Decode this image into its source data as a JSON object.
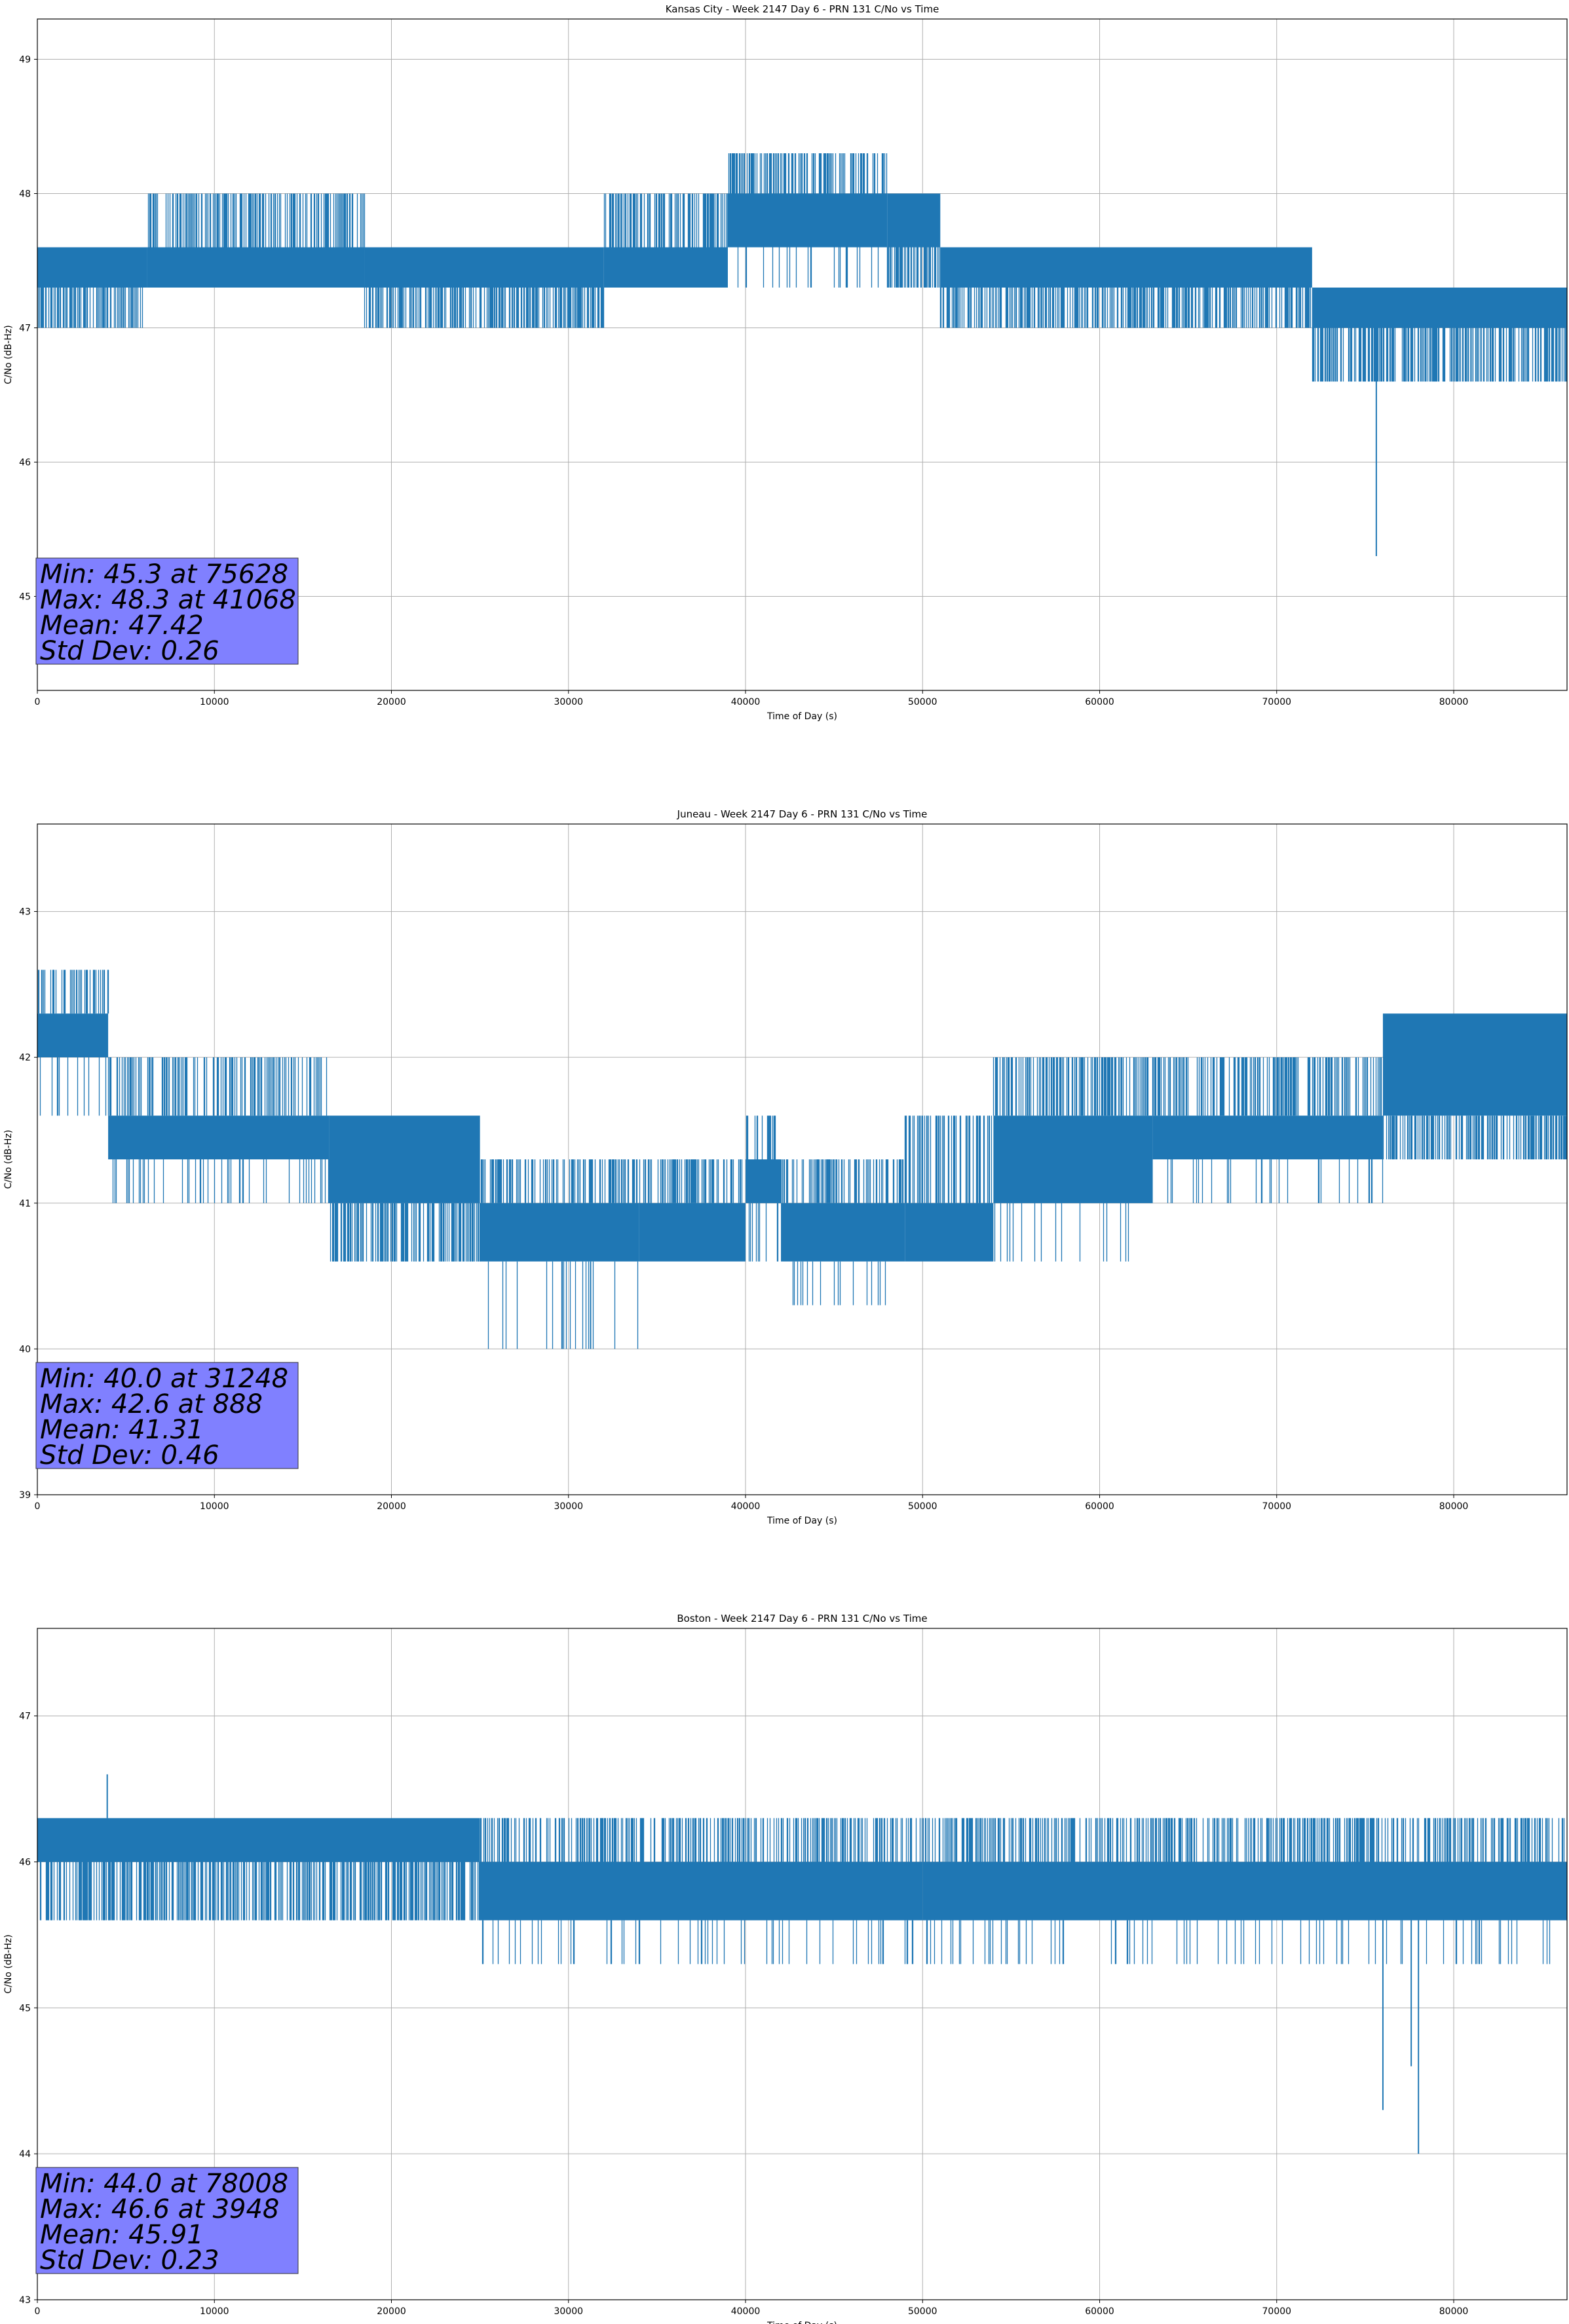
{
  "chart_data": [
    {
      "type": "line",
      "title": "Kansas City - Week 2147 Day 6 - PRN 131 C/No vs Time",
      "xlabel": "Time of Day (s)",
      "ylabel": "C/No (dB-Hz)",
      "xlim": [
        0,
        86400
      ],
      "ylim": [
        44.3,
        49.3
      ],
      "xticks": [
        0,
        10000,
        20000,
        30000,
        40000,
        50000,
        60000,
        70000,
        80000
      ],
      "yticks": [
        45,
        46,
        47,
        48,
        49
      ],
      "grid": true,
      "series": [
        {
          "name": "C/No",
          "color": "#1f77b4",
          "resolution": 0.3,
          "segments": [
            {
              "x0": 0,
              "x1": 6200,
              "base": [
                47.3,
                47.6
              ],
              "up": 47.6,
              "dn": 47.0
            },
            {
              "x0": 6200,
              "x1": 18500,
              "base": [
                47.3,
                47.6
              ],
              "up": 48.0,
              "dn": 47.3
            },
            {
              "x0": 18500,
              "x1": 32000,
              "base": [
                47.3,
                47.6
              ],
              "up": 47.6,
              "dn": 47.0
            },
            {
              "x0": 32000,
              "x1": 39000,
              "base": [
                47.3,
                47.6
              ],
              "up": 48.0,
              "dn": 47.3
            },
            {
              "x0": 39000,
              "x1": 48000,
              "base": [
                47.6,
                48.0
              ],
              "up": 48.3,
              "dn": 47.3
            },
            {
              "x0": 48000,
              "x1": 51000,
              "base": [
                47.6,
                48.0
              ],
              "up": 48.0,
              "dn": 47.3
            },
            {
              "x0": 51000,
              "x1": 72000,
              "base": [
                47.3,
                47.6
              ],
              "up": 47.6,
              "dn": 47.0
            },
            {
              "x0": 72000,
              "x1": 86400,
              "base": [
                47.0,
                47.3
              ],
              "up": 47.3,
              "dn": 46.6
            }
          ],
          "spikes": [
            {
              "x": 75628,
              "y": 45.3
            }
          ]
        }
      ],
      "stats": [
        "Min: 45.3 at 75628",
        "Max: 48.3 at 41068",
        "Mean: 47.42",
        "Std Dev: 0.26"
      ]
    },
    {
      "type": "line",
      "title": "Juneau - Week 2147 Day 6 - PRN 131 C/No vs Time",
      "xlabel": "Time of Day (s)",
      "ylabel": "C/No (dB-Hz)",
      "xlim": [
        0,
        86400
      ],
      "ylim": [
        39.0,
        43.6
      ],
      "xticks": [
        0,
        10000,
        20000,
        30000,
        40000,
        50000,
        60000,
        70000,
        80000
      ],
      "yticks": [
        39,
        40,
        41,
        42,
        43
      ],
      "grid": true,
      "series": [
        {
          "name": "C/No",
          "color": "#1f77b4",
          "resolution": 0.3,
          "segments": [
            {
              "x0": 0,
              "x1": 4000,
              "base": [
                42.0,
                42.3
              ],
              "up": 42.6,
              "dn": 41.6
            },
            {
              "x0": 4000,
              "x1": 16500,
              "base": [
                41.3,
                41.6
              ],
              "up": 42.0,
              "dn": 41.0
            },
            {
              "x0": 16500,
              "x1": 25000,
              "base": [
                41.0,
                41.6
              ],
              "up": 41.6,
              "dn": 40.6
            },
            {
              "x0": 25000,
              "x1": 34000,
              "base": [
                40.6,
                41.0
              ],
              "up": 41.3,
              "dn": 40.0
            },
            {
              "x0": 34000,
              "x1": 40000,
              "base": [
                40.6,
                41.0
              ],
              "up": 41.3,
              "dn": 40.6
            },
            {
              "x0": 40000,
              "x1": 42000,
              "base": [
                41.0,
                41.3
              ],
              "up": 41.6,
              "dn": 40.6
            },
            {
              "x0": 42000,
              "x1": 49000,
              "base": [
                40.6,
                41.0
              ],
              "up": 41.3,
              "dn": 40.3
            },
            {
              "x0": 49000,
              "x1": 54000,
              "base": [
                40.6,
                41.0
              ],
              "up": 41.6,
              "dn": 40.6
            },
            {
              "x0": 54000,
              "x1": 63000,
              "base": [
                41.0,
                41.6
              ],
              "up": 42.0,
              "dn": 40.6
            },
            {
              "x0": 63000,
              "x1": 76000,
              "base": [
                41.3,
                41.6
              ],
              "up": 42.0,
              "dn": 41.0
            },
            {
              "x0": 76000,
              "x1": 86400,
              "base": [
                41.6,
                42.3
              ],
              "up": 42.3,
              "dn": 41.3
            }
          ],
          "spikes": [
            {
              "x": 31248,
              "y": 40.0
            },
            {
              "x": 888,
              "y": 42.6
            }
          ]
        }
      ],
      "stats": [
        "Min: 40.0 at 31248",
        "Max: 42.6 at 888",
        "Mean: 41.31",
        "Std Dev: 0.46"
      ]
    },
    {
      "type": "line",
      "title": "Boston - Week 2147 Day 6 - PRN 131 C/No vs Time",
      "xlabel": "Time of Day (s)",
      "ylabel": "C/No (dB-Hz)",
      "xlim": [
        0,
        86400
      ],
      "ylim": [
        43.0,
        47.6
      ],
      "xticks": [
        0,
        10000,
        20000,
        30000,
        40000,
        50000,
        60000,
        70000,
        80000
      ],
      "yticks": [
        43,
        44,
        45,
        46,
        47
      ],
      "grid": true,
      "series": [
        {
          "name": "C/No",
          "color": "#1f77b4",
          "resolution": 0.3,
          "segments": [
            {
              "x0": 0,
              "x1": 25000,
              "base": [
                46.0,
                46.3
              ],
              "up": 46.3,
              "dn": 45.6
            },
            {
              "x0": 25000,
              "x1": 50000,
              "base": [
                45.6,
                46.0
              ],
              "up": 46.3,
              "dn": 45.3
            },
            {
              "x0": 50000,
              "x1": 86400,
              "base": [
                45.6,
                46.0
              ],
              "up": 46.3,
              "dn": 45.3
            }
          ],
          "spikes": [
            {
              "x": 78008,
              "y": 44.0
            },
            {
              "x": 76000,
              "y": 44.3
            },
            {
              "x": 77600,
              "y": 44.6
            },
            {
              "x": 3948,
              "y": 46.6
            }
          ]
        }
      ],
      "stats": [
        "Min: 44.0 at 78008",
        "Max: 46.6 at 3948",
        "Mean: 45.91",
        "Std Dev: 0.23"
      ]
    }
  ]
}
